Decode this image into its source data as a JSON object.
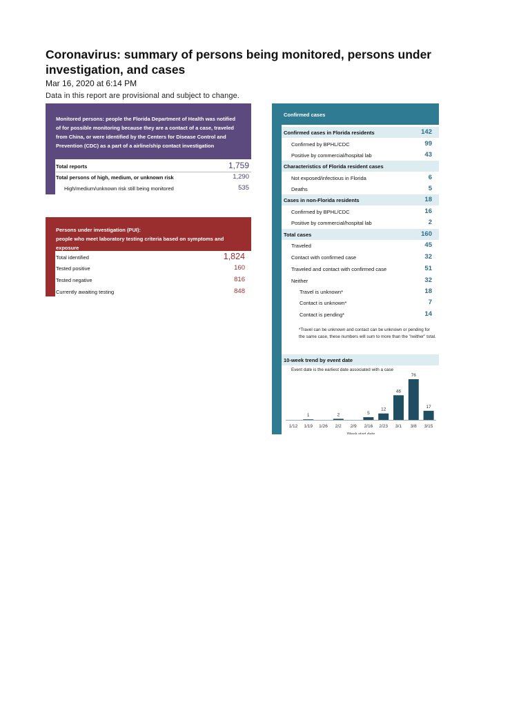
{
  "report": {
    "title": "Coronavirus: summary of persons being monitored, persons under investigation, and cases",
    "timestamp": "Mar 16, 2020 at 6:14 PM",
    "disclaimer": "Data in this report are provisional and subject to change."
  },
  "monitored": {
    "description": "Monitored persons: people the Florida Department of Health was notified of for possible monitoring because they are a contact of a case, traveled from China, or were identified by the Centers for Disease Control and Prevention (CDC) as a part of a airline/ship contact investigation",
    "total_label": "Total reports",
    "total_value": "1,759",
    "risk_label": "Total persons of high, medium, or unknown risk",
    "risk_value": "1,290",
    "still_label": "High/medium/unknown risk still being monitored",
    "still_value": "535",
    "color": "#5c4a7e"
  },
  "pui": {
    "title": "Persons under investigation (PUI):",
    "description": "people who meet laboratory testing criteria based on symptoms and exposure",
    "rows": [
      {
        "label": "Total identified",
        "value": "1,824"
      },
      {
        "label": "Tested positive",
        "value": "160"
      },
      {
        "label": "Tested negative",
        "value": "816"
      },
      {
        "label": "Currently awaiting testing",
        "value": "848"
      }
    ],
    "color": "#9a2e2e"
  },
  "confirmed": {
    "header": "Confirmed cases",
    "rows": [
      {
        "label": "Confirmed cases in Florida residents",
        "value": "142"
      },
      {
        "label": "Confirmed by BPHL/CDC",
        "value": "99"
      },
      {
        "label": "Positive by commercial/hospital lab",
        "value": "43"
      },
      {
        "label": "Characteristics of Florida resident cases",
        "value": ""
      },
      {
        "label": "Not exposed/infectious in Florida",
        "value": "6"
      },
      {
        "label": "Deaths",
        "value": "5"
      },
      {
        "label": "Cases in non-Florida residents",
        "value": "18"
      },
      {
        "label": "Confirmed by BPHL/CDC",
        "value": "16"
      },
      {
        "label": "Positive by commercial/hospital lab",
        "value": "2"
      },
      {
        "label": "Total cases",
        "value": "160"
      },
      {
        "label": "Traveled",
        "value": "45"
      },
      {
        "label": "Contact with confirmed case",
        "value": "32"
      },
      {
        "label": "Traveled and contact with confirmed case",
        "value": "51"
      },
      {
        "label": "Neither",
        "value": "32"
      },
      {
        "label": "Travel is unknown*",
        "value": "18"
      },
      {
        "label": "Contact is unknown*",
        "value": "7"
      },
      {
        "label": "Contact is pending*",
        "value": "14"
      }
    ],
    "note": "*Travel can be unknown and contact can be unknown or pending for the same case, these numbers will sum to more than the \"neither\" total.",
    "color": "#2e7b92",
    "highlight_color": "#dcecf1"
  },
  "trend": {
    "title": "10-week trend by event date",
    "subtitle": "Event date is the earliest date associated with a case"
  },
  "chart_data": {
    "type": "bar",
    "title": "10-week trend by event date",
    "subtitle": "Event date is the earliest date associated with a case",
    "xlabel": "Week start date",
    "ylabel": "",
    "categories": [
      "1/12",
      "1/19",
      "1/26",
      "2/2",
      "2/9",
      "2/16",
      "2/23",
      "3/1",
      "3/8",
      "3/15"
    ],
    "values": [
      0,
      1,
      0,
      2,
      0,
      5,
      12,
      46,
      76,
      17
    ],
    "labels": [
      "",
      "1",
      "",
      "2",
      "",
      "5",
      "12",
      "46",
      "76",
      "17"
    ],
    "ylim": [
      0,
      76
    ],
    "bar_color": "#1f4e63",
    "grid": false
  }
}
